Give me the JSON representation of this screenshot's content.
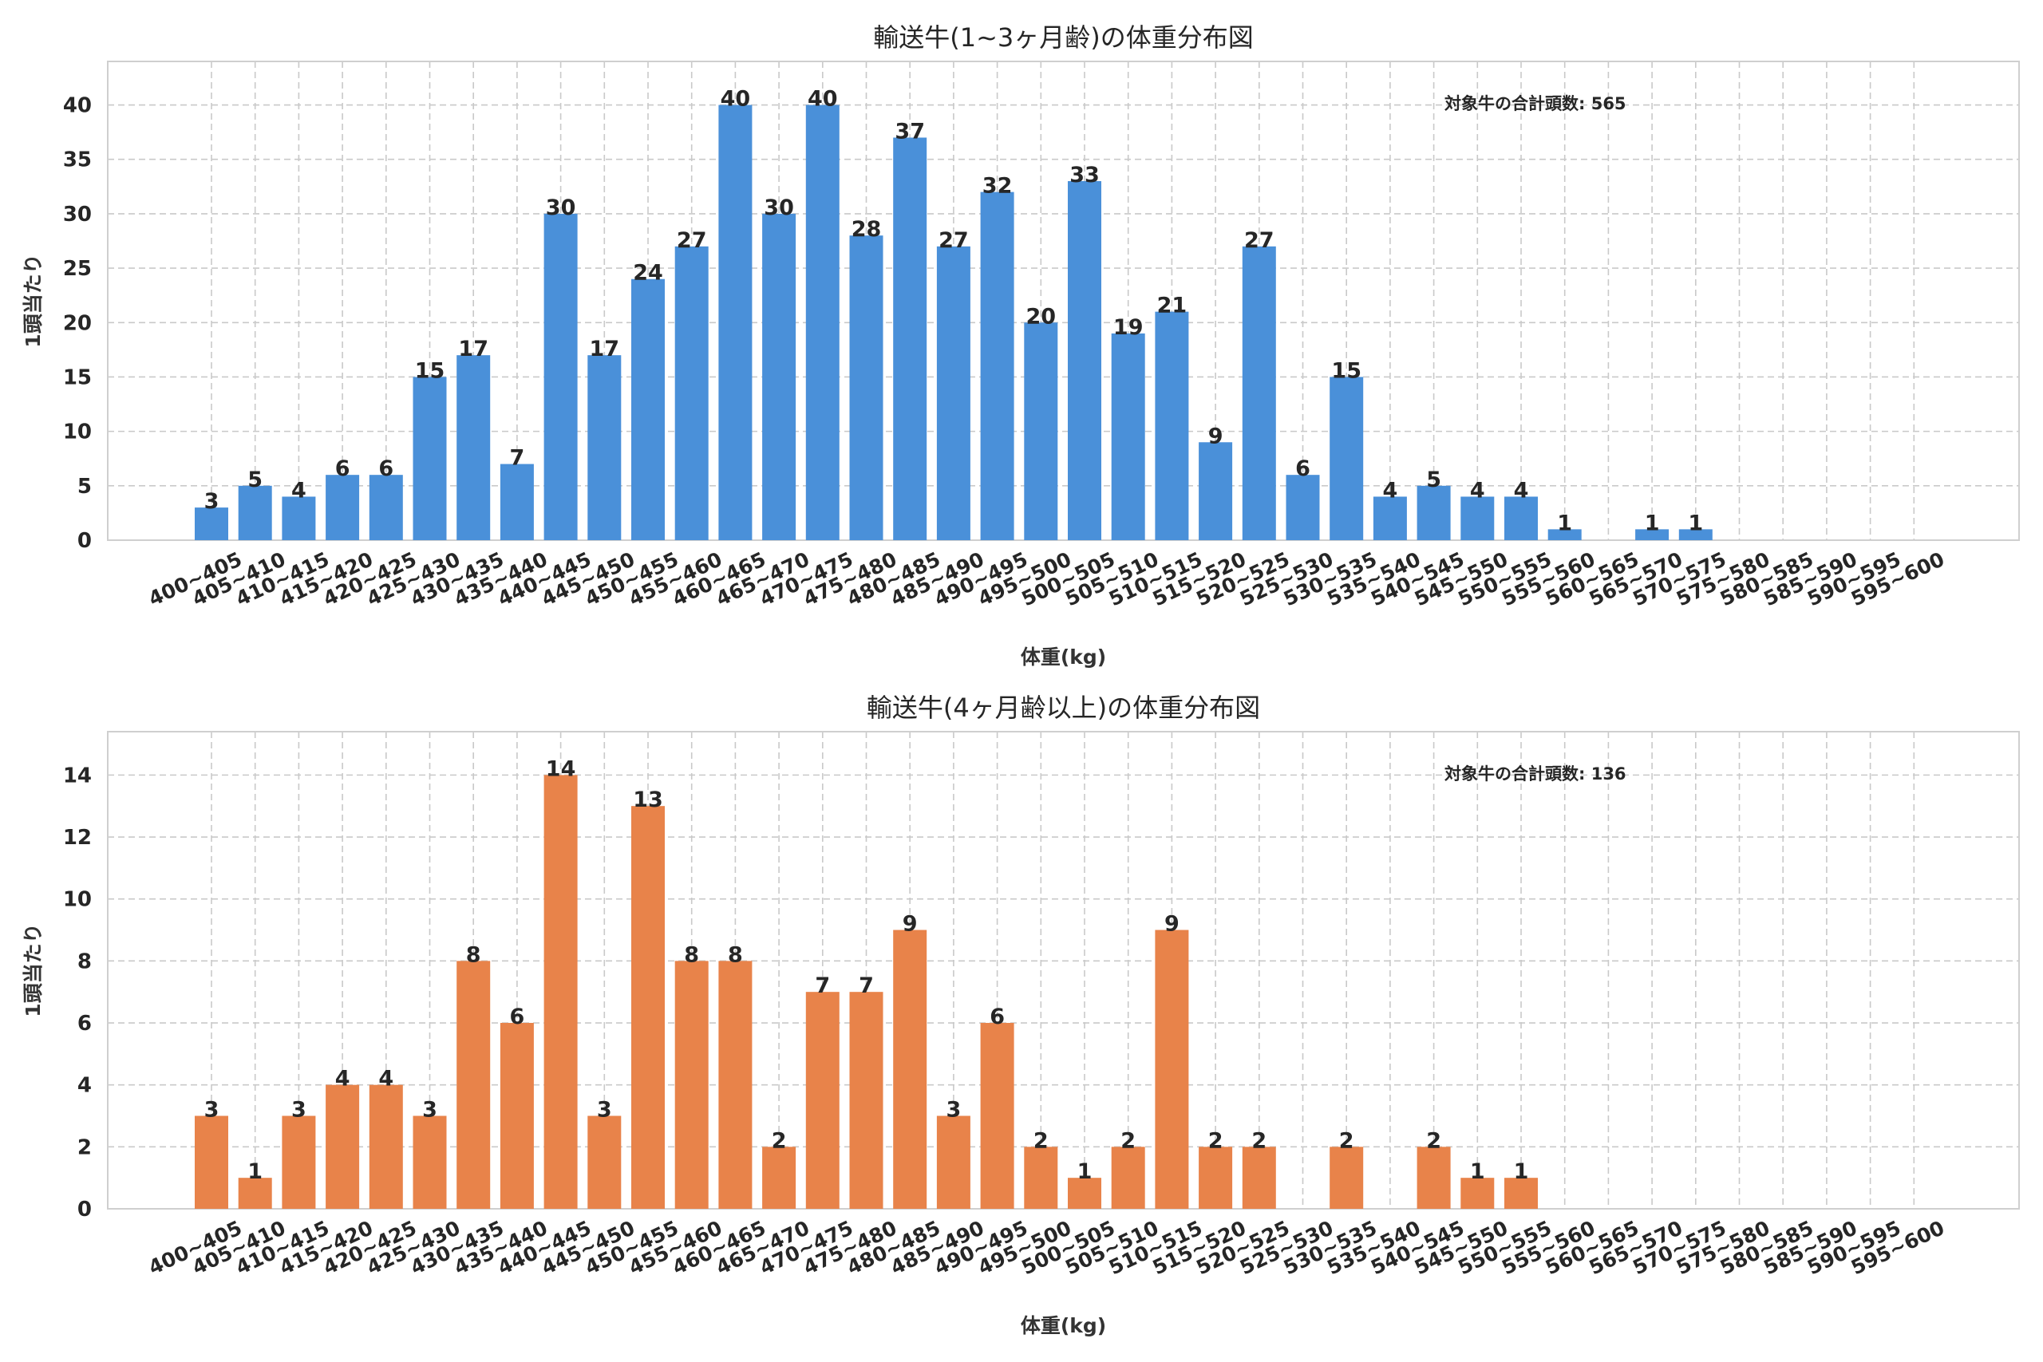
{
  "chart_data": [
    {
      "type": "bar",
      "title": "輸送牛(1~3ヶ月齢)の体重分布図",
      "xlabel": "体重(kg)",
      "ylabel": "1頭当たり",
      "total_label": "対象牛の合計頭数: 565",
      "color": "#4a90d9",
      "ylim": [
        0,
        44
      ],
      "yticks": [
        0,
        5,
        10,
        15,
        20,
        25,
        30,
        35,
        40
      ],
      "grid": true,
      "categories": [
        "400~405",
        "405~410",
        "410~415",
        "415~420",
        "420~425",
        "425~430",
        "430~435",
        "435~440",
        "440~445",
        "445~450",
        "450~455",
        "455~460",
        "460~465",
        "465~470",
        "470~475",
        "475~480",
        "480~485",
        "485~490",
        "490~495",
        "495~500",
        "500~505",
        "505~510",
        "510~515",
        "515~520",
        "520~525",
        "525~530",
        "530~535",
        "535~540",
        "540~545",
        "545~550",
        "550~555",
        "555~560",
        "560~565",
        "565~570",
        "570~575",
        "575~580",
        "580~585",
        "585~590",
        "590~595",
        "595~600"
      ],
      "values": [
        3,
        5,
        4,
        6,
        6,
        15,
        17,
        7,
        30,
        17,
        24,
        27,
        40,
        30,
        40,
        28,
        37,
        27,
        32,
        20,
        33,
        19,
        21,
        9,
        27,
        6,
        15,
        4,
        5,
        4,
        4,
        1,
        0,
        1,
        1,
        0,
        0,
        0,
        0,
        0
      ]
    },
    {
      "type": "bar",
      "title": "輸送牛(4ヶ月齢以上)の体重分布図",
      "xlabel": "体重(kg)",
      "ylabel": "1頭当たり",
      "total_label": "対象牛の合計頭数: 136",
      "color": "#e8834a",
      "ylim": [
        0,
        15.4
      ],
      "yticks": [
        0,
        2,
        4,
        6,
        8,
        10,
        12,
        14
      ],
      "grid": true,
      "categories": [
        "400~405",
        "405~410",
        "410~415",
        "415~420",
        "420~425",
        "425~430",
        "430~435",
        "435~440",
        "440~445",
        "445~450",
        "450~455",
        "455~460",
        "460~465",
        "465~470",
        "470~475",
        "475~480",
        "480~485",
        "485~490",
        "490~495",
        "495~500",
        "500~505",
        "505~510",
        "510~515",
        "515~520",
        "520~525",
        "525~530",
        "530~535",
        "535~540",
        "540~545",
        "545~550",
        "550~555",
        "555~560",
        "560~565",
        "565~570",
        "570~575",
        "575~580",
        "580~585",
        "585~590",
        "590~595",
        "595~600"
      ],
      "values": [
        3,
        1,
        3,
        4,
        4,
        3,
        8,
        6,
        14,
        3,
        13,
        8,
        8,
        2,
        7,
        7,
        9,
        3,
        6,
        2,
        1,
        2,
        9,
        2,
        2,
        0,
        2,
        0,
        2,
        1,
        1,
        0,
        0,
        0,
        0,
        0,
        0,
        0,
        0,
        0
      ]
    }
  ]
}
